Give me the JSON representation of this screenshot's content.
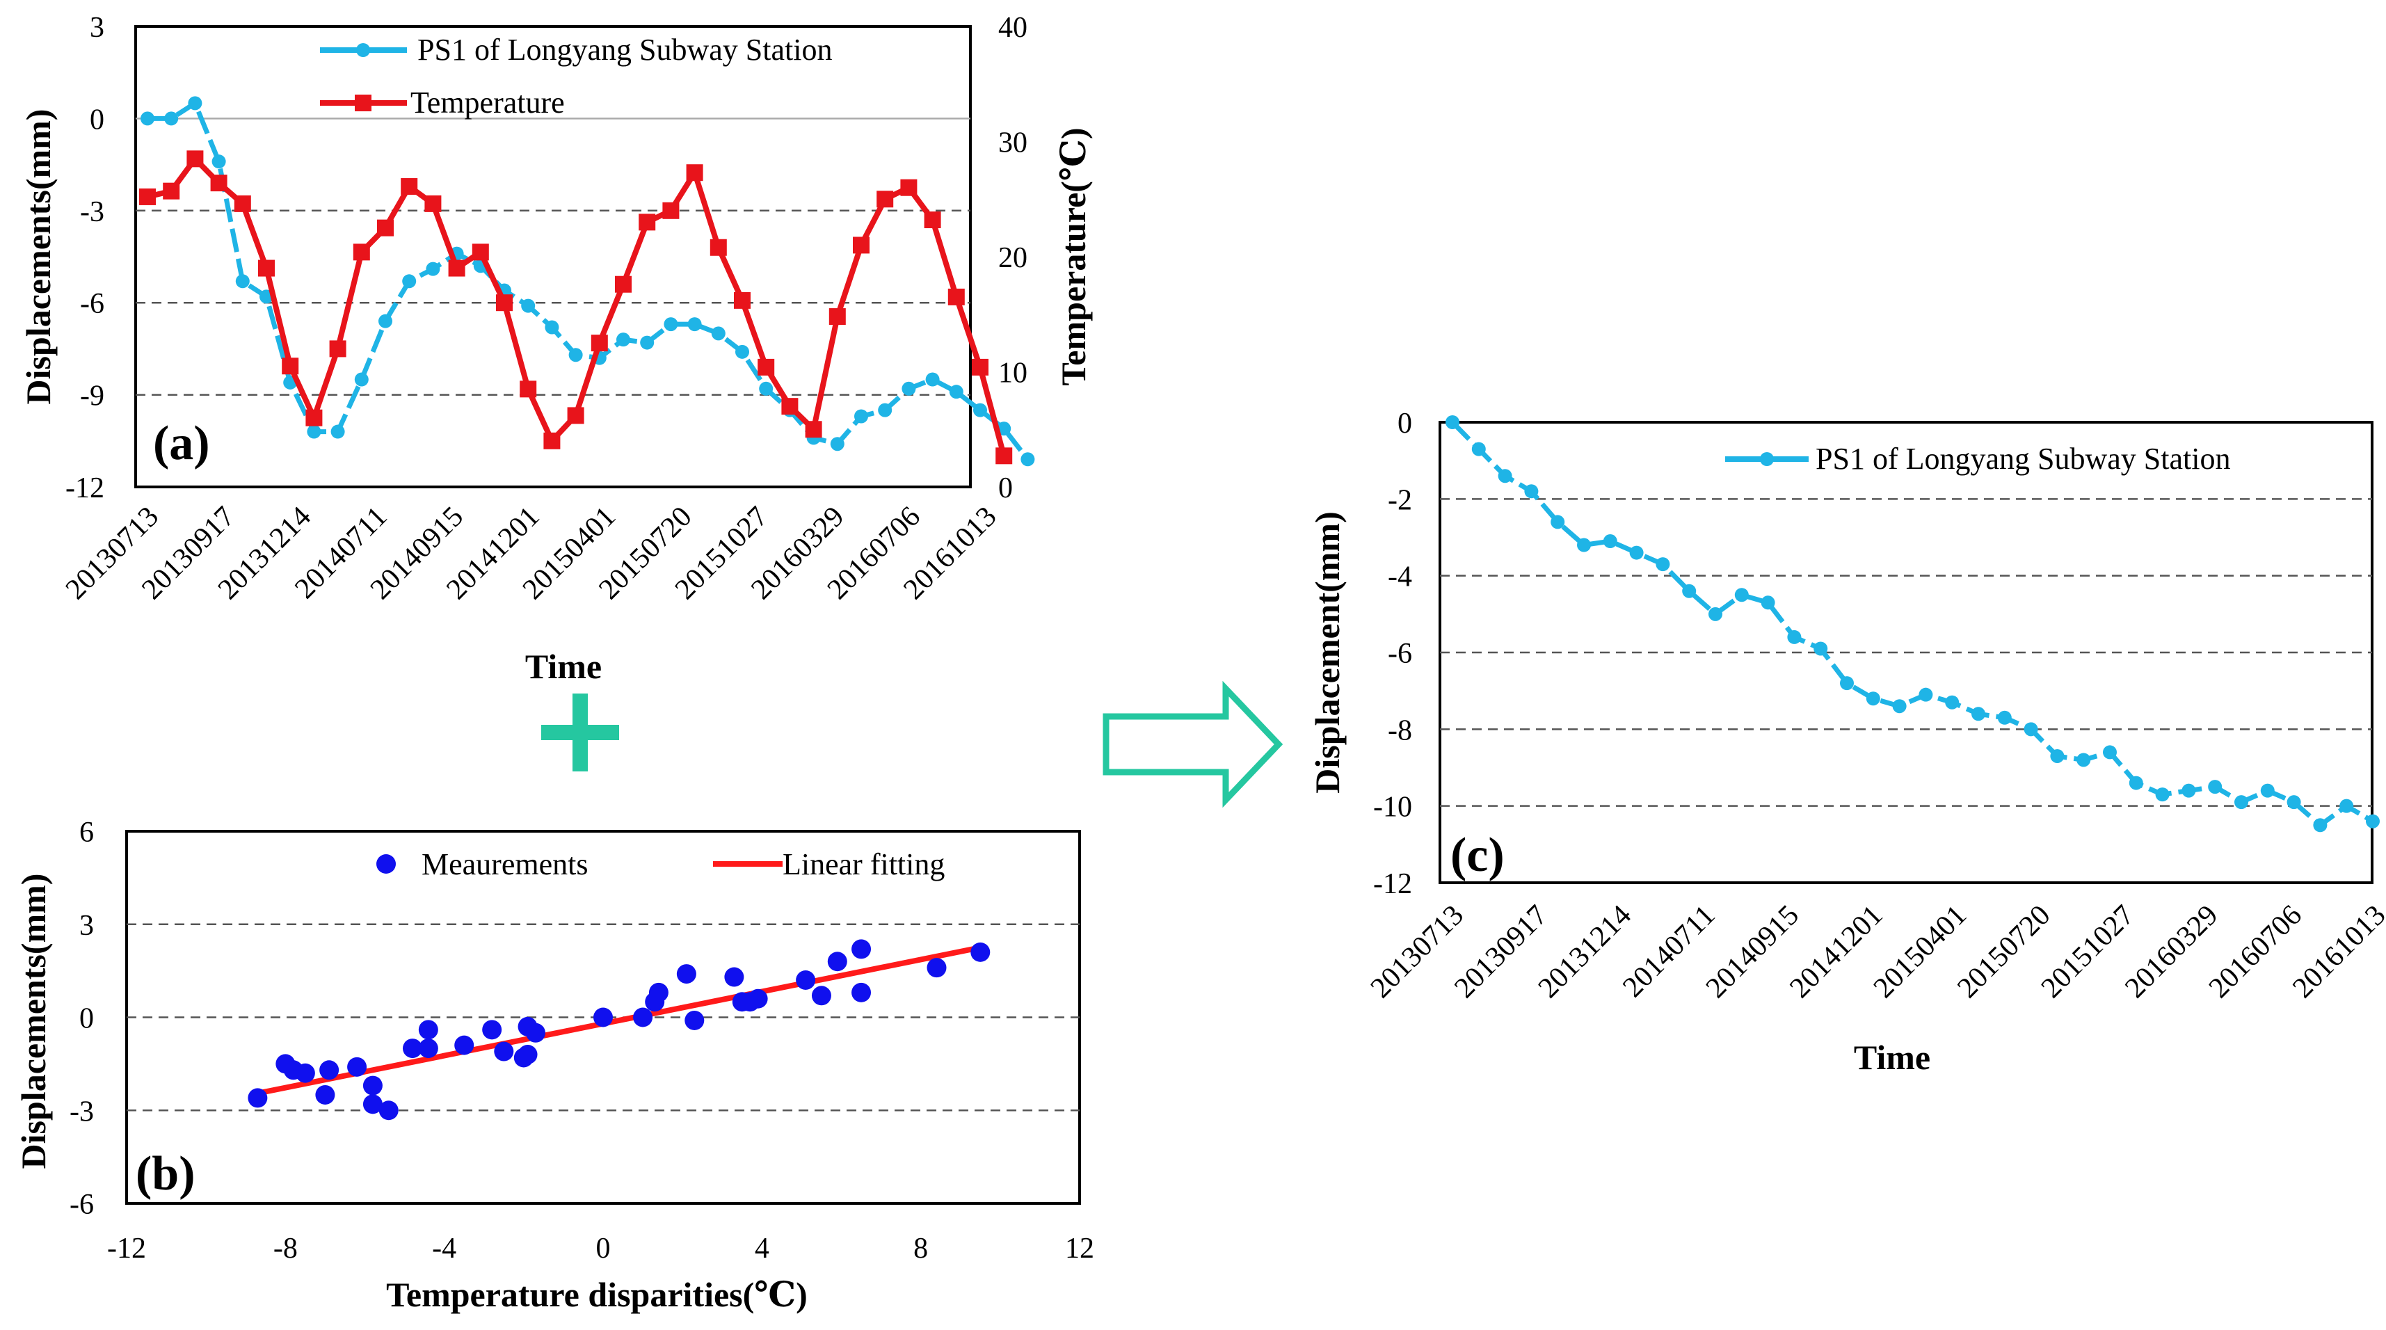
{
  "colors": {
    "displacement": "#1fb4e6",
    "temperature": "#e8141b",
    "measurement": "#1010ee",
    "fit": "#ff1a1a",
    "arrow": "#25c7a0",
    "plus": "#25c7a0"
  },
  "panels": {
    "a": "(a)",
    "b": "(b)",
    "c": "(c)"
  },
  "symbol_plus": "+",
  "chart_data": [
    {
      "id": "a",
      "type": "line",
      "xlabel": "Time",
      "ylabel": "Displacements(mm)",
      "y2label": "Temperature(℃)",
      "ylim": [
        -12,
        3
      ],
      "y_ticks": [
        3,
        0,
        -3,
        -6,
        -9,
        -12
      ],
      "y2lim": [
        0,
        40
      ],
      "y2_ticks": [
        40,
        30,
        20,
        10,
        0
      ],
      "x_tick_labels": [
        "20130713",
        "20130917",
        "20131214",
        "20140711",
        "20140915",
        "20141201",
        "20150401",
        "20150720",
        "20151027",
        "20160329",
        "20160706",
        "20161013"
      ],
      "series": [
        {
          "name": "PS1 of Longyang Subway Station",
          "axis": "left",
          "values": [
            0.0,
            0.0,
            0.5,
            -1.4,
            -5.3,
            -5.8,
            -8.6,
            -10.2,
            -10.2,
            -8.5,
            -6.6,
            -5.3,
            -4.9,
            -4.4,
            -4.8,
            -5.6,
            -6.1,
            -6.8,
            -7.7,
            -7.8,
            -7.2,
            -7.3,
            -6.7,
            -6.7,
            -7.0,
            -7.6,
            -8.8,
            -9.5,
            -10.4,
            -10.6,
            -9.7,
            -9.5,
            -8.8,
            -8.5,
            -8.9,
            -9.5,
            -10.1,
            -11.1
          ]
        },
        {
          "name": "Temperature",
          "axis": "right",
          "values": [
            25.2,
            25.7,
            28.5,
            26.4,
            24.6,
            19.0,
            10.5,
            6.0,
            12.0,
            20.4,
            22.5,
            26.1,
            24.6,
            19.0,
            20.4,
            16.0,
            8.5,
            4.0,
            6.2,
            12.5,
            17.6,
            23.0,
            24.0,
            27.3,
            20.8,
            16.2,
            10.4,
            7.0,
            5.0,
            14.8,
            21.0,
            25.0,
            26.0,
            23.2,
            16.5,
            10.4,
            2.7
          ]
        }
      ]
    },
    {
      "id": "b",
      "type": "scatter",
      "xlabel": "Temperature  disparities(℃)",
      "ylabel": "Displacements(mm)",
      "xlim": [
        -12,
        12
      ],
      "x_ticks": [
        -12,
        -8,
        -4,
        0,
        4,
        8,
        12
      ],
      "ylim": [
        -6,
        6
      ],
      "y_ticks": [
        6,
        3,
        0,
        -3,
        -6
      ],
      "series": [
        {
          "name": "Meaurements",
          "x": [
            -8.7,
            -8.0,
            -7.8,
            -7.5,
            -7.0,
            -6.9,
            -6.2,
            -5.8,
            -5.8,
            -5.4,
            -4.8,
            -4.4,
            -4.4,
            -3.5,
            -2.8,
            -2.5,
            -2.0,
            -1.9,
            -1.9,
            -1.7,
            0.0,
            1.0,
            1.3,
            1.4,
            2.1,
            2.3,
            3.3,
            3.5,
            3.7,
            3.9,
            5.1,
            5.5,
            5.9,
            6.5,
            6.5,
            8.4,
            9.5
          ],
          "y": [
            -2.6,
            -1.5,
            -1.7,
            -1.8,
            -2.5,
            -1.7,
            -1.6,
            -2.2,
            -2.8,
            -3.0,
            -1.0,
            -0.4,
            -1.0,
            -0.9,
            -0.4,
            -1.1,
            -1.3,
            -0.3,
            -1.2,
            -0.5,
            0.0,
            0.0,
            0.5,
            0.8,
            1.4,
            -0.1,
            1.3,
            0.5,
            0.5,
            0.6,
            1.2,
            0.7,
            1.8,
            2.2,
            0.8,
            1.6,
            2.1
          ]
        },
        {
          "name": "Linear fitting",
          "x": [
            -8.7,
            9.5
          ],
          "y": [
            -2.45,
            2.25
          ]
        }
      ]
    },
    {
      "id": "c",
      "type": "line",
      "xlabel": "Time",
      "ylabel": "Displacement(mm)",
      "ylim": [
        -12,
        0
      ],
      "y_ticks": [
        0,
        -2,
        -4,
        -6,
        -8,
        -10,
        -12
      ],
      "x_tick_labels": [
        "20130713",
        "20130917",
        "20131214",
        "20140711",
        "20140915",
        "20141201",
        "20150401",
        "20150720",
        "20151027",
        "20160329",
        "20160706",
        "20161013"
      ],
      "series": [
        {
          "name": "PS1 of Longyang Subway Station",
          "values": [
            0.0,
            -0.7,
            -1.4,
            -1.8,
            -2.6,
            -3.2,
            -3.1,
            -3.4,
            -3.7,
            -4.4,
            -5.0,
            -4.5,
            -4.7,
            -5.6,
            -5.9,
            -6.8,
            -7.2,
            -7.4,
            -7.1,
            -7.3,
            -7.6,
            -7.7,
            -8.0,
            -8.7,
            -8.8,
            -8.6,
            -9.4,
            -9.7,
            -9.6,
            -9.5,
            -9.9,
            -9.6,
            -9.9,
            -10.5,
            -10.0,
            -10.4
          ]
        }
      ]
    }
  ]
}
